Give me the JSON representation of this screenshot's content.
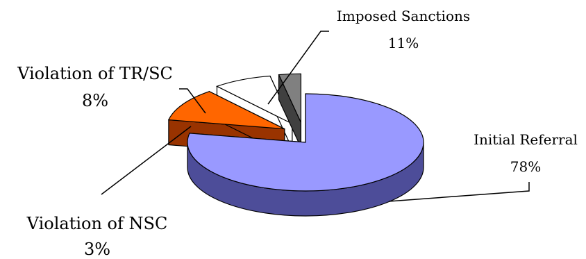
{
  "chart_data": {
    "type": "pie",
    "style": "3d-exploded",
    "title": "",
    "categories": [
      "Initial Referral",
      "Imposed Sanctions",
      "Violation of TR/SC",
      "Violation of NSC"
    ],
    "values": [
      78,
      11,
      8,
      3
    ],
    "value_labels": [
      "78%",
      "11%",
      "8%",
      "3%"
    ],
    "colors": {
      "Initial Referral": "#9999ff",
      "Imposed Sanctions": "#ff6600",
      "Violation of TR/SC": "#ffffff",
      "Violation of NSC": "#808080"
    },
    "side_colors": {
      "Initial Referral": "#4d4d99",
      "Imposed Sanctions": "#993300",
      "Violation of TR/SC": "#ffffff",
      "Violation of NSC": "#404040"
    },
    "legend": "none",
    "data_labels": "name-and-percent-with-leader-lines"
  }
}
